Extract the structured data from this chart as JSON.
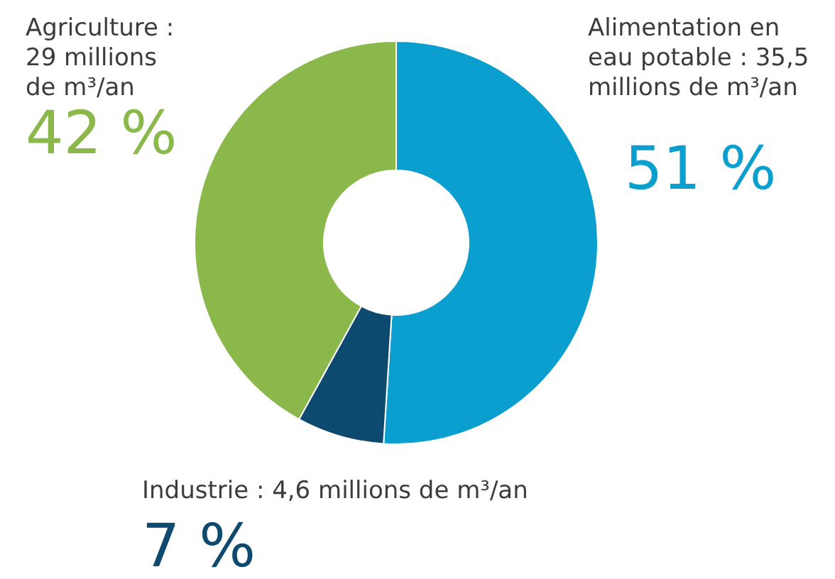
{
  "chart_data": {
    "type": "donut",
    "categories": [
      "Alimentation en eau potable : 35,5 millions de m³/an",
      "Industrie : 4,6 millions de m³/an",
      "Agriculture : 29 millions de m³/an"
    ],
    "values": [
      51,
      7,
      42
    ],
    "colors": [
      "#0a9fcf",
      "#0e4a6f",
      "#8ab84a"
    ],
    "value_labels": [
      "51 %",
      "7 %",
      "42 %"
    ]
  }
}
